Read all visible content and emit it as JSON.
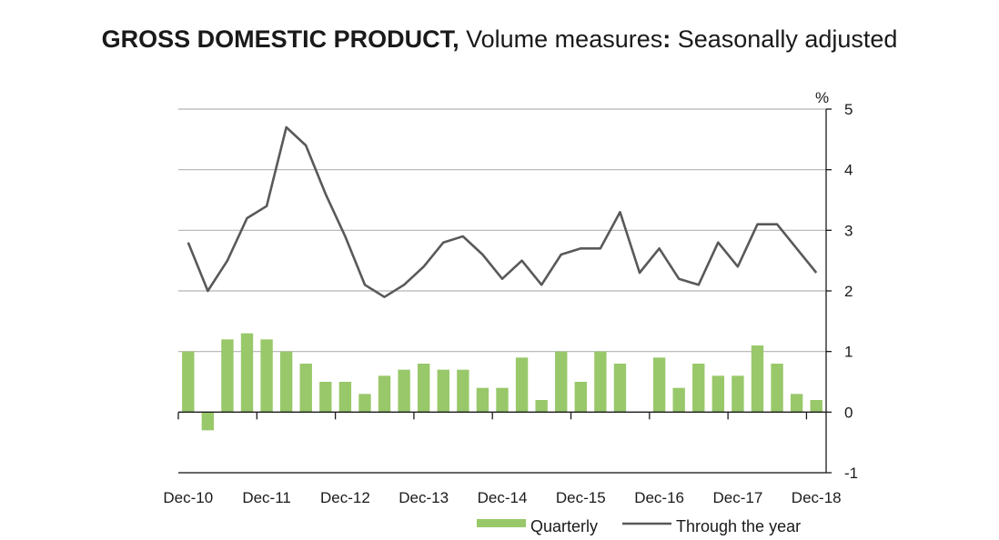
{
  "title": {
    "part1": "GROSS DOMESTIC PRODUCT,",
    "part2": " Volume measures",
    "part3": ":",
    "part4": " Seasonally adjusted"
  },
  "chart_data": {
    "type": "bar",
    "title": "GROSS DOMESTIC PRODUCT, Volume measures: Seasonally adjusted",
    "ylabel": "%",
    "ylim": [
      -1,
      5
    ],
    "yticks": [
      -1,
      0,
      1,
      2,
      3,
      4,
      5
    ],
    "y_axis_side": "right",
    "grid": true,
    "legend_placement": "bottom",
    "x_tick_labels": [
      "Dec-10",
      "Dec-11",
      "Dec-12",
      "Dec-13",
      "Dec-14",
      "Dec-15",
      "Dec-16",
      "Dec-17",
      "Dec-18"
    ],
    "categories": [
      "Dec-10",
      "Mar-11",
      "Jun-11",
      "Sep-11",
      "Dec-11",
      "Mar-12",
      "Jun-12",
      "Sep-12",
      "Dec-12",
      "Mar-13",
      "Jun-13",
      "Sep-13",
      "Dec-13",
      "Mar-14",
      "Jun-14",
      "Sep-14",
      "Dec-14",
      "Mar-15",
      "Jun-15",
      "Sep-15",
      "Dec-15",
      "Mar-16",
      "Jun-16",
      "Sep-16",
      "Dec-16",
      "Mar-17",
      "Jun-17",
      "Sep-17",
      "Dec-17",
      "Mar-18",
      "Jun-18",
      "Sep-18",
      "Dec-18"
    ],
    "series": [
      {
        "name": "Quarterly",
        "type": "bar",
        "color": "#99c86a",
        "values": [
          1.0,
          -0.3,
          1.2,
          1.3,
          1.2,
          1.0,
          0.8,
          0.5,
          0.5,
          0.3,
          0.6,
          0.7,
          0.8,
          0.7,
          0.7,
          0.4,
          0.4,
          0.9,
          0.2,
          1.0,
          0.5,
          1.0,
          0.8,
          0.0,
          0.9,
          0.4,
          0.8,
          0.6,
          0.6,
          1.1,
          0.8,
          0.3,
          0.2
        ]
      },
      {
        "name": "Through the year",
        "type": "line",
        "color": "#595959",
        "values": [
          2.8,
          2.0,
          2.5,
          3.2,
          3.4,
          4.7,
          4.4,
          3.6,
          2.9,
          2.1,
          1.9,
          2.1,
          2.4,
          2.8,
          2.9,
          2.6,
          2.2,
          2.5,
          2.1,
          2.6,
          2.7,
          2.7,
          3.3,
          2.3,
          2.7,
          2.2,
          2.1,
          2.8,
          2.4,
          3.1,
          3.1,
          2.7,
          2.3
        ]
      }
    ]
  }
}
